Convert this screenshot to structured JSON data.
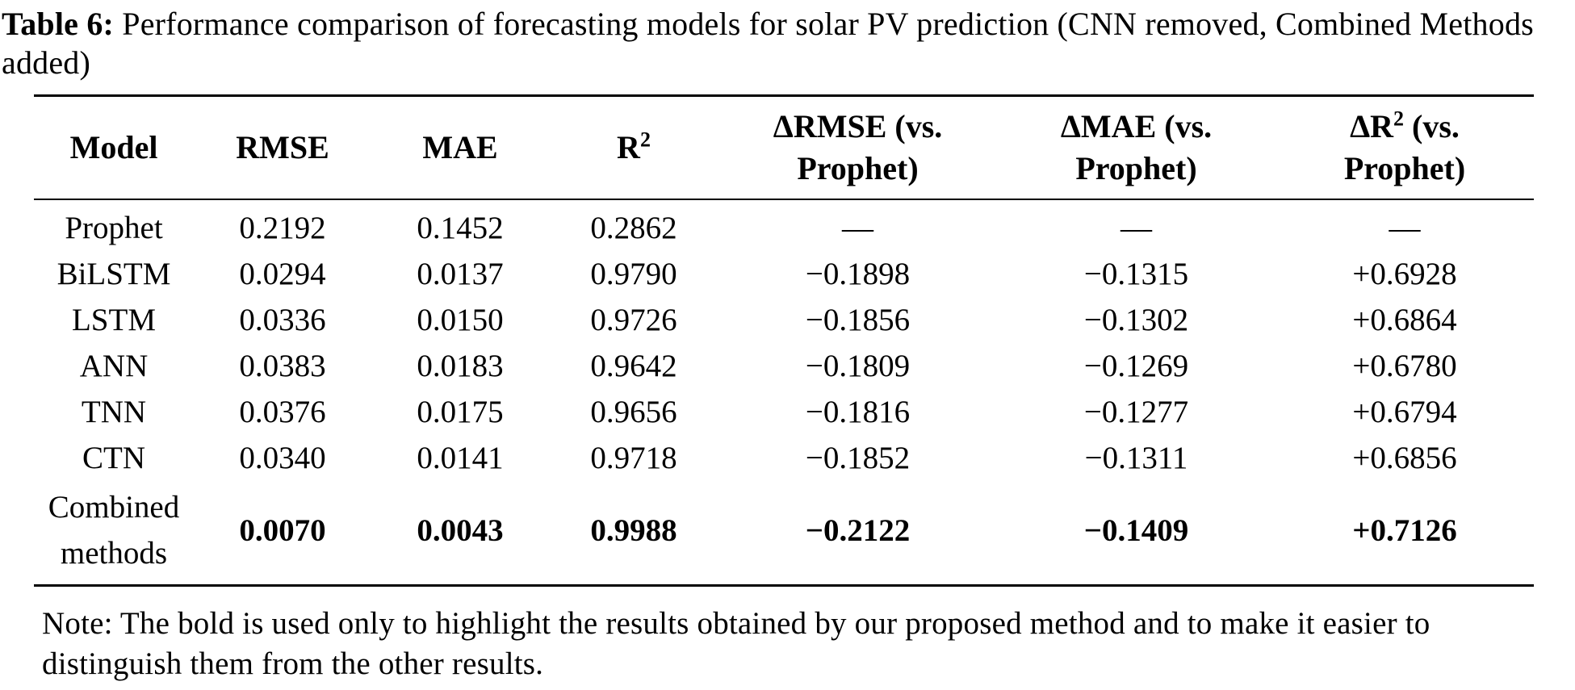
{
  "caption": {
    "label": "Table 6:",
    "line1": "Performance comparison of forecasting models for solar PV prediction (CNN removed, Combined Methods",
    "line2": "added)"
  },
  "table": {
    "columns": [
      {
        "id": "model",
        "pre": "Model"
      },
      {
        "id": "rmse",
        "pre": "RMSE"
      },
      {
        "id": "mae",
        "pre": "MAE"
      },
      {
        "id": "r2",
        "pre": "R",
        "sup": "2"
      },
      {
        "id": "delta-rmse",
        "pre": "ΔRMSE (vs. Prophet)"
      },
      {
        "id": "delta-mae",
        "pre": "ΔMAE (vs. Prophet)"
      },
      {
        "id": "delta-r2",
        "pre": "ΔR",
        "sup": "2",
        "post": " (vs. Prophet)"
      }
    ],
    "rows": [
      {
        "model": "Prophet",
        "values": [
          "0.2192",
          "0.1452",
          "0.2862",
          "—",
          "—",
          "—"
        ],
        "bold": false
      },
      {
        "model": "BiLSTM",
        "values": [
          "0.0294",
          "0.0137",
          "0.9790",
          "−0.1898",
          "−0.1315",
          "+0.6928"
        ],
        "bold": false
      },
      {
        "model": "LSTM",
        "values": [
          "0.0336",
          "0.0150",
          "0.9726",
          "−0.1856",
          "−0.1302",
          "+0.6864"
        ],
        "bold": false
      },
      {
        "model": "ANN",
        "values": [
          "0.0383",
          "0.0183",
          "0.9642",
          "−0.1809",
          "−0.1269",
          "+0.6780"
        ],
        "bold": false
      },
      {
        "model": "TNN",
        "values": [
          "0.0376",
          "0.0175",
          "0.9656",
          "−0.1816",
          "−0.1277",
          "+0.6794"
        ],
        "bold": false
      },
      {
        "model": "CTN",
        "values": [
          "0.0340",
          "0.0141",
          "0.9718",
          "−0.1852",
          "−0.1311",
          "+0.6856"
        ],
        "bold": false
      },
      {
        "model": "Combined methods",
        "values": [
          "0.0070",
          "0.0043",
          "0.9988",
          "−0.2122",
          "−0.1409",
          "+0.7126"
        ],
        "bold": true
      }
    ]
  },
  "note": "Note: The bold is used only to highlight the results obtained by our proposed method and to make it easier to distinguish them from the other results."
}
